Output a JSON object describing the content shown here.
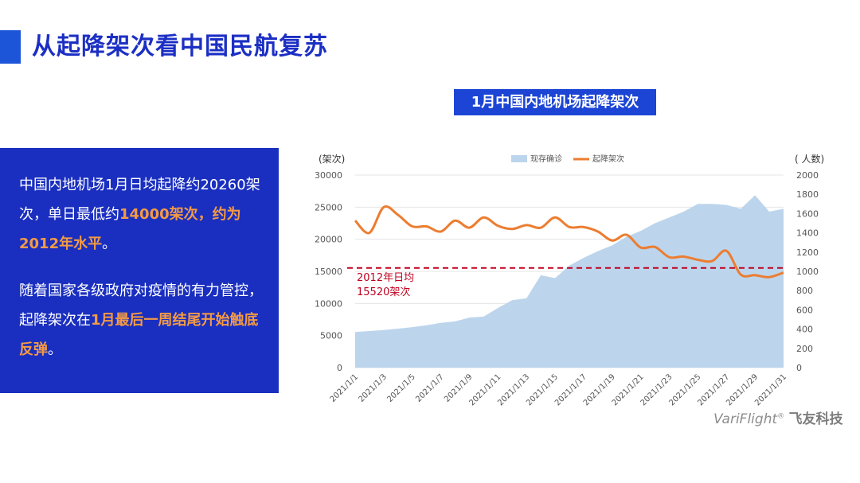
{
  "page": {
    "title": "从起降架次看中国民航复苏",
    "chart_title": "1月中国内地机场起降架次",
    "logo_en": "VariFlight",
    "logo_reg": "®",
    "logo_cn": "飞友科技"
  },
  "text": {
    "p1_a": "中国内地机场1月日均起降约20260架次，单日最低约",
    "p1_hl": "14000架次，约为2012年水平",
    "p1_b": "。",
    "p2_a": "随着国家各级政府对疫情的有力管控，起降架次在",
    "p2_hl": "1月最后一周结尾开始触底反弹",
    "p2_b": "。"
  },
  "chart_data": {
    "type": "line",
    "x": [
      "2021/1/1",
      "2021/1/2",
      "2021/1/3",
      "2021/1/4",
      "2021/1/5",
      "2021/1/6",
      "2021/1/7",
      "2021/1/8",
      "2021/1/9",
      "2021/1/10",
      "2021/1/11",
      "2021/1/12",
      "2021/1/13",
      "2021/1/14",
      "2021/1/15",
      "2021/1/16",
      "2021/1/17",
      "2021/1/18",
      "2021/1/19",
      "2021/1/20",
      "2021/1/21",
      "2021/1/22",
      "2021/1/23",
      "2021/1/24",
      "2021/1/25",
      "2021/1/26",
      "2021/1/27",
      "2021/1/28",
      "2021/1/29",
      "2021/1/30",
      "2021/1/31"
    ],
    "xticks": [
      "2021/1/1",
      "2021/1/3",
      "2021/1/5",
      "2021/1/7",
      "2021/1/9",
      "2021/1/11",
      "2021/1/13",
      "2021/1/15",
      "2021/1/17",
      "2021/1/19",
      "2021/1/21",
      "2021/1/23",
      "2021/1/25",
      "2021/1/27",
      "2021/1/29",
      "2021/1/31"
    ],
    "series": [
      {
        "name": "现存确诊",
        "type": "area",
        "axis": "right",
        "color": "#bcd5ec",
        "values": [
          370,
          380,
          390,
          405,
          420,
          440,
          465,
          480,
          520,
          530,
          620,
          700,
          720,
          960,
          930,
          1060,
          1140,
          1210,
          1270,
          1360,
          1420,
          1500,
          1560,
          1620,
          1700,
          1700,
          1690,
          1650,
          1790,
          1620,
          1650
        ]
      },
      {
        "name": "起降架次",
        "type": "line",
        "axis": "left",
        "color": "#ec7d31",
        "values": [
          22900,
          21000,
          25000,
          23800,
          22000,
          22000,
          21200,
          22900,
          21800,
          23400,
          22100,
          21600,
          22200,
          21800,
          23400,
          21900,
          21900,
          21200,
          19800,
          20700,
          18700,
          18800,
          17200,
          17300,
          16800,
          16600,
          18200,
          14500,
          14400,
          14100,
          14800
        ]
      }
    ],
    "y_left": {
      "label": "(架次)",
      "min": 0,
      "max": 30000,
      "ticks": [
        0,
        5000,
        10000,
        15000,
        20000,
        25000,
        30000
      ]
    },
    "y_right": {
      "label": "( 人数)",
      "min": 0,
      "max": 2000,
      "ticks": [
        0,
        200,
        400,
        600,
        800,
        1000,
        1200,
        1400,
        1600,
        1800,
        2000
      ]
    },
    "reference": {
      "value": 15520,
      "label_1": "2012年日均",
      "label_2": "15520架次",
      "color": "#c0001e"
    },
    "legend_position": "top-center",
    "grid": true
  }
}
